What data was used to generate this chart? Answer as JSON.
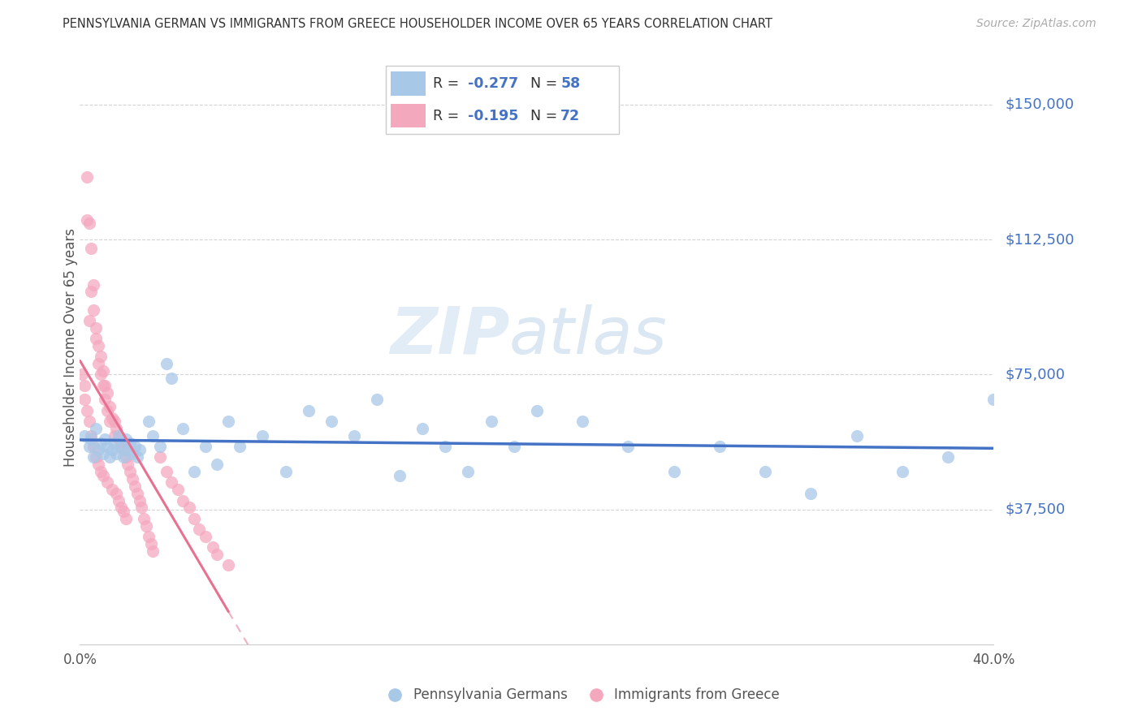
{
  "title": "PENNSYLVANIA GERMAN VS IMMIGRANTS FROM GREECE HOUSEHOLDER INCOME OVER 65 YEARS CORRELATION CHART",
  "source": "Source: ZipAtlas.com",
  "ylabel": "Householder Income Over 65 years",
  "xlim": [
    0.0,
    0.4
  ],
  "ylim": [
    0,
    165000
  ],
  "yticks": [
    0,
    37500,
    75000,
    112500,
    150000
  ],
  "ytick_labels": [
    "",
    "$37,500",
    "$75,000",
    "$112,500",
    "$150,000"
  ],
  "xticks": [
    0.0,
    0.05,
    0.1,
    0.15,
    0.2,
    0.25,
    0.3,
    0.35,
    0.4
  ],
  "xtick_labels": [
    "0.0%",
    "",
    "",
    "",
    "",
    "",
    "",
    "",
    "40.0%"
  ],
  "blue_color": "#a8c8e8",
  "pink_color": "#f4a8be",
  "trend_blue_color": "#4472c4",
  "trend_pink_color": "#e87090",
  "trend_pink_dash_color": "#f0b0c0",
  "label1": "Pennsylvania Germans",
  "label2": "Immigrants from Greece",
  "legend_r1": "-0.277",
  "legend_n1": "58",
  "legend_r2": "-0.195",
  "legend_n2": "72",
  "watermark_zip": "ZIP",
  "watermark_atlas": "atlas",
  "blue_R": -0.277,
  "blue_N": 58,
  "pink_R": -0.195,
  "pink_N": 72,
  "blue_scatter_x": [
    0.002,
    0.004,
    0.005,
    0.006,
    0.007,
    0.008,
    0.009,
    0.01,
    0.011,
    0.012,
    0.013,
    0.014,
    0.015,
    0.016,
    0.017,
    0.018,
    0.019,
    0.02,
    0.021,
    0.022,
    0.023,
    0.024,
    0.025,
    0.026,
    0.03,
    0.032,
    0.035,
    0.038,
    0.04,
    0.045,
    0.05,
    0.055,
    0.06,
    0.065,
    0.07,
    0.08,
    0.09,
    0.1,
    0.11,
    0.12,
    0.13,
    0.14,
    0.15,
    0.16,
    0.17,
    0.18,
    0.19,
    0.2,
    0.22,
    0.24,
    0.26,
    0.28,
    0.3,
    0.32,
    0.34,
    0.36,
    0.38,
    0.4
  ],
  "blue_scatter_y": [
    58000,
    55000,
    57000,
    52000,
    60000,
    54000,
    56000,
    53000,
    57000,
    55000,
    52000,
    54000,
    56000,
    53000,
    58000,
    55000,
    52000,
    57000,
    54000,
    56000,
    53000,
    55000,
    52000,
    54000,
    62000,
    58000,
    55000,
    78000,
    74000,
    60000,
    48000,
    55000,
    50000,
    62000,
    55000,
    58000,
    48000,
    65000,
    62000,
    58000,
    68000,
    47000,
    60000,
    55000,
    48000,
    62000,
    55000,
    65000,
    62000,
    55000,
    48000,
    55000,
    48000,
    42000,
    58000,
    48000,
    52000,
    68000
  ],
  "pink_scatter_x": [
    0.001,
    0.002,
    0.002,
    0.003,
    0.003,
    0.003,
    0.004,
    0.004,
    0.004,
    0.005,
    0.005,
    0.005,
    0.006,
    0.006,
    0.006,
    0.007,
    0.007,
    0.007,
    0.008,
    0.008,
    0.008,
    0.009,
    0.009,
    0.009,
    0.01,
    0.01,
    0.01,
    0.011,
    0.011,
    0.012,
    0.012,
    0.012,
    0.013,
    0.013,
    0.014,
    0.014,
    0.015,
    0.015,
    0.016,
    0.016,
    0.017,
    0.017,
    0.018,
    0.018,
    0.019,
    0.019,
    0.02,
    0.02,
    0.021,
    0.022,
    0.023,
    0.024,
    0.025,
    0.026,
    0.027,
    0.028,
    0.029,
    0.03,
    0.031,
    0.032,
    0.035,
    0.038,
    0.04,
    0.043,
    0.045,
    0.048,
    0.05,
    0.052,
    0.055,
    0.058,
    0.06,
    0.065
  ],
  "pink_scatter_y": [
    75000,
    72000,
    68000,
    130000,
    118000,
    65000,
    117000,
    90000,
    62000,
    110000,
    98000,
    58000,
    100000,
    93000,
    55000,
    88000,
    85000,
    52000,
    83000,
    78000,
    50000,
    80000,
    75000,
    48000,
    76000,
    72000,
    47000,
    72000,
    68000,
    70000,
    65000,
    45000,
    66000,
    62000,
    63000,
    43000,
    62000,
    58000,
    60000,
    42000,
    57000,
    40000,
    55000,
    38000,
    54000,
    37000,
    52000,
    35000,
    50000,
    48000,
    46000,
    44000,
    42000,
    40000,
    38000,
    35000,
    33000,
    30000,
    28000,
    26000,
    52000,
    48000,
    45000,
    43000,
    40000,
    38000,
    35000,
    32000,
    30000,
    27000,
    25000,
    22000
  ]
}
